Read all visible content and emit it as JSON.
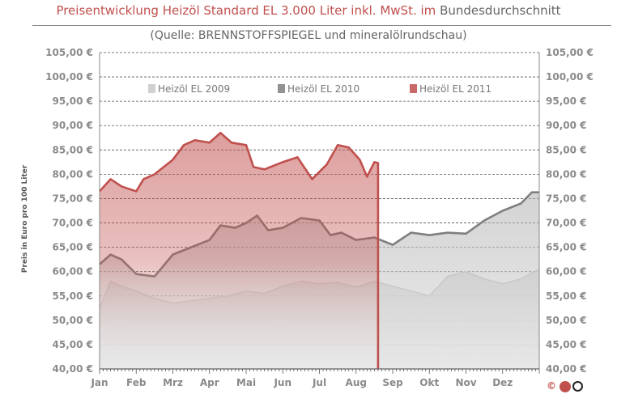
{
  "title": {
    "part1": "Preisentwicklung Heizöl Standard EL 3.000 Liter inkl. MwSt. im",
    "part2": "Bundesdurchschnitt"
  },
  "subtitle": "(Quelle: BRENNSTOFFSPIEGEL  und mineralölrundschau)",
  "logo_text": "©",
  "colors": {
    "2009": "#c8c8c8",
    "2010": "#7f7f7f",
    "2011": "#c0504d"
  },
  "chart_data": {
    "type": "area",
    "ylabel": "Preis in Euro pro 100 Liter",
    "ylim": [
      40,
      105
    ],
    "yticks": [
      40,
      45,
      50,
      55,
      60,
      65,
      70,
      75,
      80,
      85,
      90,
      95,
      100,
      105
    ],
    "ytick_labels": [
      "40,00 €",
      "45,00 €",
      "50,00 €",
      "55,00 €",
      "60,00 €",
      "65,00 €",
      "70,00 €",
      "75,00 €",
      "80,00 €",
      "85,00 €",
      "90,00 €",
      "95,00 €",
      "100,00 €",
      "105,00 €"
    ],
    "months": [
      "Jan",
      "Feb",
      "Mrz",
      "Apr",
      "Mai",
      "Jun",
      "Jul",
      "Aug",
      "Sep",
      "Okt",
      "Nov",
      "Dez"
    ],
    "x_range": [
      0,
      12
    ],
    "grid": "horizontal dashed",
    "legend_position": "top",
    "series": [
      {
        "name": "Heizöl EL 2009",
        "color_key": "2009",
        "points": [
          [
            0,
            52.5
          ],
          [
            0.3,
            58
          ],
          [
            0.6,
            57
          ],
          [
            1,
            56
          ],
          [
            1.5,
            54.5
          ],
          [
            2,
            53.5
          ],
          [
            2.5,
            54
          ],
          [
            3,
            54.5
          ],
          [
            3.5,
            55
          ],
          [
            4,
            56
          ],
          [
            4.5,
            55.5
          ],
          [
            5,
            57
          ],
          [
            5.5,
            58
          ],
          [
            6,
            57.5
          ],
          [
            6.5,
            57.8
          ],
          [
            7,
            56.8
          ],
          [
            7.5,
            58
          ],
          [
            8,
            57
          ],
          [
            8.5,
            56
          ],
          [
            9,
            55
          ],
          [
            9.5,
            59
          ],
          [
            10,
            60
          ],
          [
            10.5,
            58.5
          ],
          [
            11,
            57.5
          ],
          [
            11.5,
            58.5
          ],
          [
            12,
            60.5
          ]
        ]
      },
      {
        "name": "Heizöl EL 2010",
        "color_key": "2010",
        "points": [
          [
            0,
            61.5
          ],
          [
            0.3,
            63.5
          ],
          [
            0.6,
            62.5
          ],
          [
            1,
            59.5
          ],
          [
            1.5,
            59
          ],
          [
            2,
            63.5
          ],
          [
            2.5,
            65
          ],
          [
            3,
            66.5
          ],
          [
            3.3,
            69.5
          ],
          [
            3.7,
            69
          ],
          [
            4,
            70
          ],
          [
            4.3,
            71.5
          ],
          [
            4.6,
            68.5
          ],
          [
            5,
            69
          ],
          [
            5.5,
            71
          ],
          [
            6,
            70.5
          ],
          [
            6.3,
            67.5
          ],
          [
            6.6,
            68
          ],
          [
            7,
            66.5
          ],
          [
            7.5,
            67
          ],
          [
            8,
            65.5
          ],
          [
            8.5,
            68
          ],
          [
            9,
            67.5
          ],
          [
            9.5,
            68
          ],
          [
            10,
            67.8
          ],
          [
            10.5,
            70.5
          ],
          [
            11,
            72.5
          ],
          [
            11.5,
            74
          ],
          [
            11.8,
            76.3
          ],
          [
            12,
            76.3
          ]
        ]
      },
      {
        "name": "Heizöl EL 2011",
        "color_key": "2011",
        "points": [
          [
            0,
            76.5
          ],
          [
            0.3,
            79
          ],
          [
            0.6,
            77.5
          ],
          [
            1,
            76.5
          ],
          [
            1.2,
            79
          ],
          [
            1.5,
            80
          ],
          [
            2,
            83
          ],
          [
            2.3,
            86
          ],
          [
            2.6,
            87
          ],
          [
            3,
            86.5
          ],
          [
            3.3,
            88.5
          ],
          [
            3.6,
            86.5
          ],
          [
            4,
            86
          ],
          [
            4.2,
            81.5
          ],
          [
            4.5,
            81
          ],
          [
            5,
            82.5
          ],
          [
            5.4,
            83.5
          ],
          [
            5.8,
            79
          ],
          [
            6.2,
            82
          ],
          [
            6.5,
            86
          ],
          [
            6.8,
            85.5
          ],
          [
            7.1,
            83
          ],
          [
            7.3,
            79.5
          ],
          [
            7.5,
            82.5
          ],
          [
            7.6,
            82.3
          ],
          [
            7.6,
            40
          ]
        ]
      }
    ]
  }
}
